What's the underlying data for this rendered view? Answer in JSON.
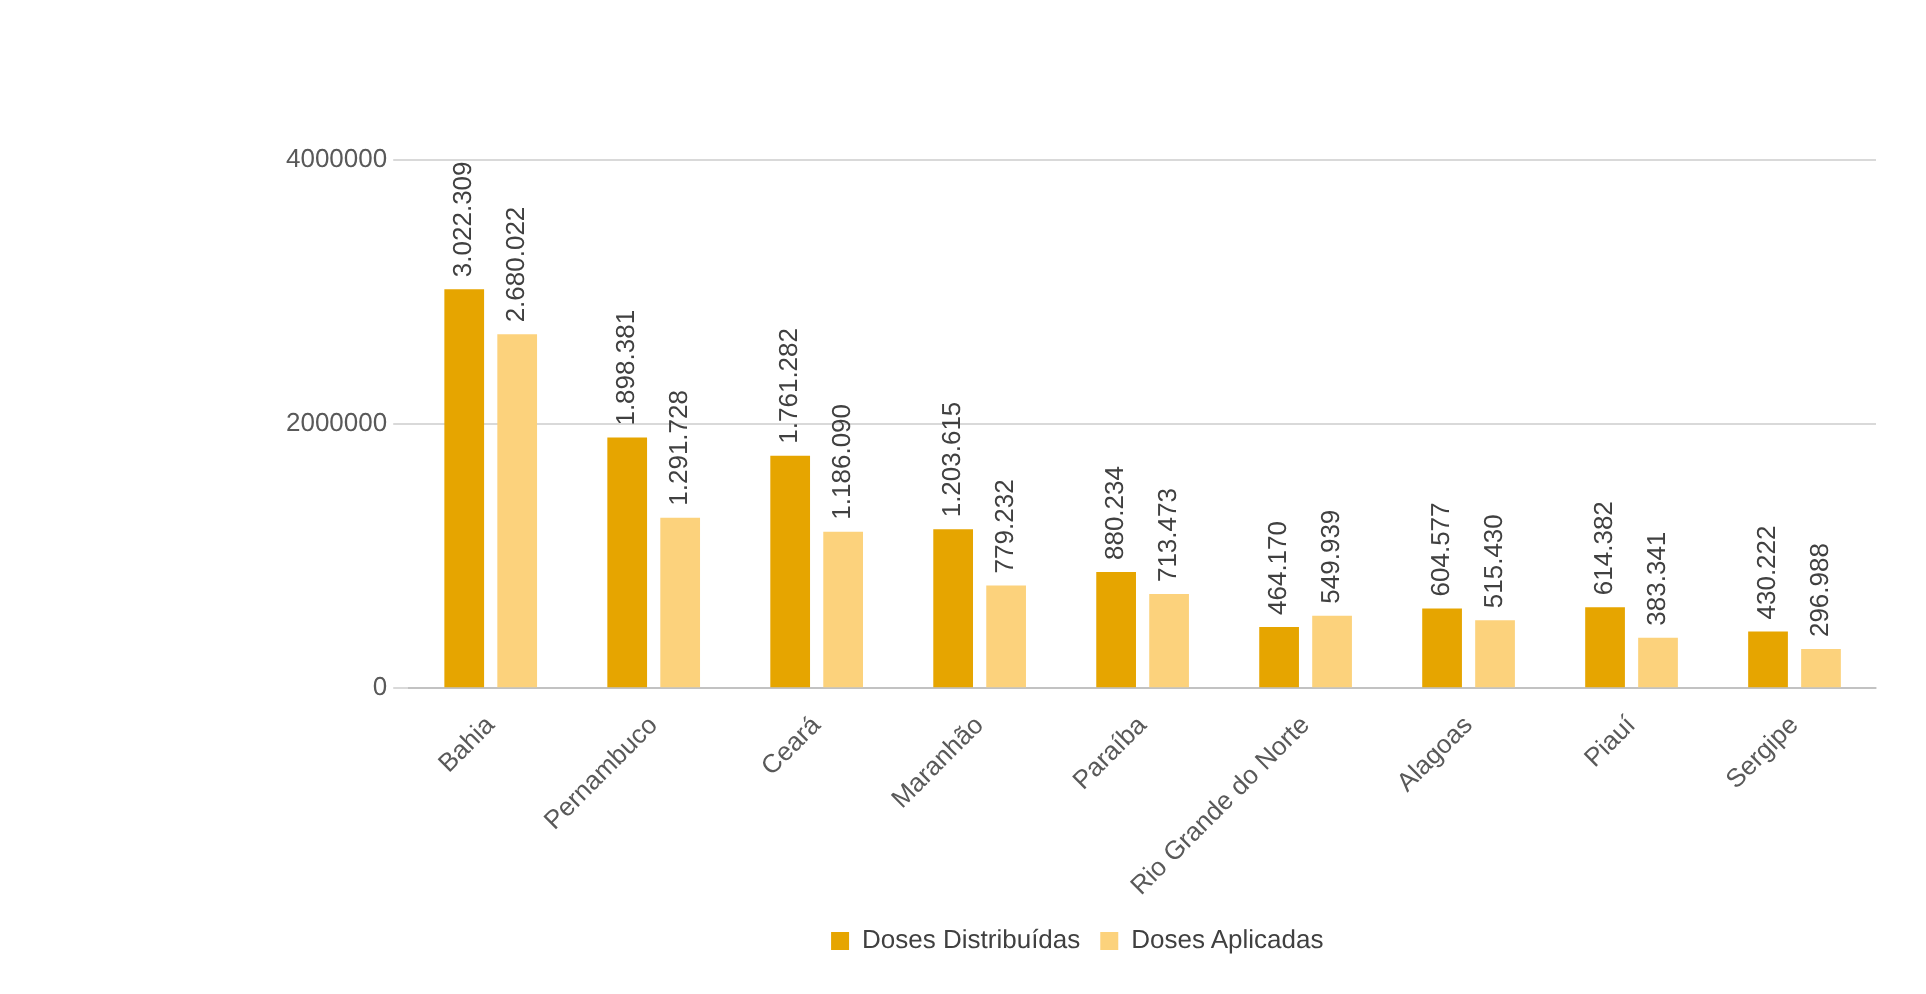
{
  "chart_data": {
    "type": "bar",
    "categories": [
      "Bahia",
      "Pernambuco",
      "Ceará",
      "Maranhão",
      "Paraíba",
      "Rio Grande do Norte",
      "Alagoas",
      "Piauí",
      "Sergipe"
    ],
    "series": [
      {
        "name": "Doses Distribuídas",
        "color": "#e6a500",
        "values": [
          3022309,
          1898381,
          1761282,
          1203615,
          880234,
          464170,
          604577,
          614382,
          430222
        ],
        "value_labels": [
          "3.022.309",
          "1.898.381",
          "1.761.282",
          "1.203.615",
          "880.234",
          "464.170",
          "604.577",
          "614.382",
          "430.222"
        ]
      },
      {
        "name": "Doses Aplicadas",
        "color": "#fcd27c",
        "values": [
          2680022,
          1291728,
          1186090,
          779232,
          713473,
          549939,
          515430,
          383341,
          296988
        ],
        "value_labels": [
          "2.680.022",
          "1.291.728",
          "1.186.090",
          "779.232",
          "713.473",
          "549.939",
          "515.430",
          "383.341",
          "296.988"
        ]
      }
    ],
    "ylim": [
      0,
      4000000
    ],
    "yticks": [
      0,
      {
        "value": 2000000,
        "label": "2000000"
      },
      {
        "value": 4000000,
        "label": "4000000"
      }
    ],
    "grid": "y",
    "legend": "bottom"
  }
}
